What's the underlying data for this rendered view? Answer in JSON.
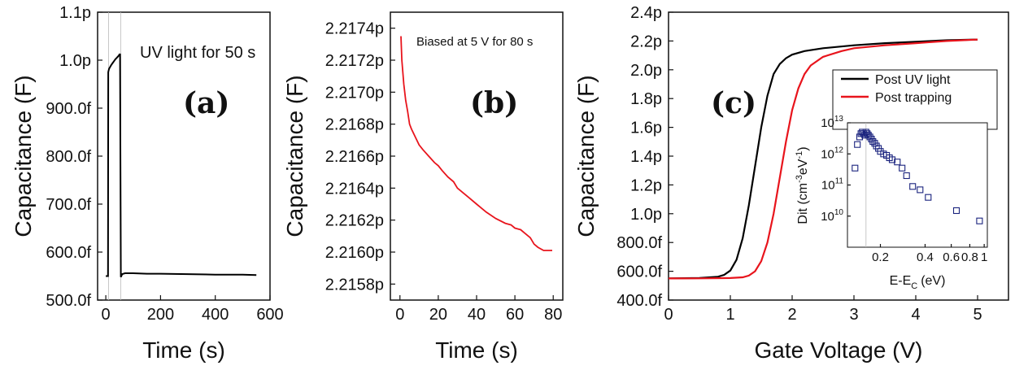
{
  "chart_data": [
    {
      "panel": "(a)",
      "type": "line",
      "title": "",
      "xlabel": "Time (s)",
      "ylabel": "Capacitance (F)",
      "xlim": [
        -30,
        600
      ],
      "ylim": [
        500,
        1100
      ],
      "xticks": [
        0,
        200,
        400,
        600
      ],
      "xtick_labels": [
        "0",
        "200",
        "400",
        "600"
      ],
      "yticks": [
        500,
        600,
        700,
        800,
        900,
        1000,
        1100
      ],
      "ytick_labels": [
        "500.0f",
        "600.0f",
        "700.0f",
        "800.0f",
        "900.0f",
        "1.0p",
        "1.1p"
      ],
      "annotation": "UV light for 50 s",
      "series": [
        {
          "name": "capacitance",
          "color": "#000000",
          "x": [
            0,
            8,
            9,
            10,
            12,
            15,
            20,
            25,
            30,
            35,
            40,
            45,
            48,
            50,
            52,
            55,
            60,
            70,
            80,
            100,
            150,
            200,
            300,
            400,
            500,
            550
          ],
          "y": [
            550,
            550,
            975,
            978,
            982,
            985,
            990,
            994,
            998,
            1002,
            1005,
            1008,
            1010,
            1012,
            1012,
            548,
            554,
            556,
            556,
            556,
            555,
            555,
            554,
            553,
            553,
            552
          ]
        }
      ],
      "guide_lines_x": [
        10,
        55
      ]
    },
    {
      "panel": "(b)",
      "type": "line",
      "title": "",
      "xlabel": "Time (s)",
      "ylabel": "Capacitance (F)",
      "xlim": [
        -5,
        85
      ],
      "ylim": [
        2.2157,
        2.2175
      ],
      "xticks": [
        0,
        20,
        40,
        60,
        80
      ],
      "xtick_labels": [
        "0",
        "20",
        "40",
        "60",
        "80"
      ],
      "yticks": [
        2.2158,
        2.216,
        2.2162,
        2.2164,
        2.2166,
        2.2168,
        2.217,
        2.2172,
        2.2174
      ],
      "ytick_labels": [
        "2.2158p",
        "2.2160p",
        "2.2162p",
        "2.2164p",
        "2.2166p",
        "2.2168p",
        "2.2170p",
        "2.2172p",
        "2.2174p"
      ],
      "annotation": "Biased at 5 V for 80 s",
      "series": [
        {
          "name": "capacitance",
          "color": "#e8141c",
          "x": [
            0.5,
            1,
            2,
            3,
            4,
            5,
            6,
            8,
            10,
            12,
            15,
            18,
            20,
            22,
            25,
            28,
            30,
            33,
            36,
            40,
            45,
            50,
            55,
            58,
            60,
            63,
            65,
            68,
            70,
            72,
            75,
            78,
            79.5
          ],
          "y": [
            2.21735,
            2.2172,
            2.21705,
            2.21695,
            2.21688,
            2.2168,
            2.21677,
            2.21672,
            2.21667,
            2.21664,
            2.2166,
            2.21656,
            2.21654,
            2.21651,
            2.21647,
            2.21644,
            2.2164,
            2.21637,
            2.21634,
            2.2163,
            2.21625,
            2.21621,
            2.21618,
            2.21617,
            2.21615,
            2.21614,
            2.21612,
            2.21609,
            2.21605,
            2.21603,
            2.21601,
            2.21601,
            2.21601
          ]
        }
      ]
    },
    {
      "panel": "(c)",
      "type": "line",
      "title": "",
      "xlabel": "Gate Voltage (V)",
      "ylabel": "Capacitance (F)",
      "xlim": [
        0,
        5.5
      ],
      "ylim": [
        400,
        2400
      ],
      "xticks": [
        0,
        1,
        2,
        3,
        4,
        5
      ],
      "xtick_labels": [
        "0",
        "1",
        "2",
        "3",
        "4",
        "5"
      ],
      "yticks": [
        400,
        600,
        800,
        1000,
        1200,
        1400,
        1600,
        1800,
        2000,
        2200,
        2400
      ],
      "ytick_labels": [
        "400.0f",
        "600.0f",
        "800.0f",
        "1.0p",
        "1.2p",
        "1.4p",
        "1.6p",
        "1.8p",
        "2.0p",
        "2.2p",
        "2.4p"
      ],
      "legend": [
        "Post UV light",
        "Post trapping"
      ],
      "legend_position": "top-right",
      "series": [
        {
          "name": "Post UV light",
          "color": "#000000",
          "x": [
            0,
            0.5,
            0.8,
            0.9,
            1.0,
            1.1,
            1.2,
            1.3,
            1.4,
            1.5,
            1.6,
            1.7,
            1.8,
            1.9,
            2.0,
            2.2,
            2.5,
            3.0,
            3.5,
            4.0,
            4.5,
            5.0
          ],
          "y": [
            550,
            553,
            562,
            575,
            605,
            680,
            830,
            1060,
            1330,
            1600,
            1820,
            1970,
            2040,
            2080,
            2105,
            2130,
            2150,
            2170,
            2185,
            2195,
            2205,
            2210
          ]
        },
        {
          "name": "Post trapping",
          "color": "#e8141c",
          "x": [
            0,
            0.5,
            1.0,
            1.2,
            1.3,
            1.4,
            1.5,
            1.6,
            1.7,
            1.8,
            1.9,
            2.0,
            2.1,
            2.2,
            2.3,
            2.5,
            2.8,
            3.0,
            3.5,
            4.0,
            4.5,
            5.0
          ],
          "y": [
            550,
            551,
            553,
            558,
            570,
            600,
            670,
            800,
            1000,
            1250,
            1500,
            1720,
            1870,
            1970,
            2030,
            2090,
            2130,
            2150,
            2170,
            2185,
            2200,
            2210
          ]
        }
      ]
    },
    {
      "panel": "(c) inset",
      "type": "scatter",
      "title": "",
      "xlabel": "E-E",
      "xlabel_sub": "C",
      "xlabel_unit": "(eV)",
      "ylabel": "Dit (cm",
      "ylabel_sup": "-3",
      "ylabel_mid": "eV",
      "ylabel_sup2": "-1",
      "ylabel_end": ")",
      "xscale": "log",
      "yscale": "log",
      "xlim": [
        0.12,
        1.05
      ],
      "ylim": [
        1000000000.0,
        10000000000000.0
      ],
      "xticks": [
        0.2,
        0.4,
        0.6,
        0.8,
        1
      ],
      "xtick_labels": [
        "0.2",
        "0.4",
        "0.6",
        "0.8",
        "1"
      ],
      "yticks": [
        10000000000.0,
        100000000000.0,
        1000000000000.0,
        10000000000000.0
      ],
      "ytick_labels": [
        {
          "base": "10",
          "exp": "10"
        },
        {
          "base": "10",
          "exp": "11"
        },
        {
          "base": "10",
          "exp": "12"
        },
        {
          "base": "10",
          "exp": "13"
        }
      ],
      "marker": "hollow-square",
      "color": "#1a237e",
      "guide_line_x": 0.16,
      "series": [
        {
          "name": "Dit",
          "x": [
            0.135,
            0.14,
            0.145,
            0.148,
            0.151,
            0.154,
            0.157,
            0.16,
            0.163,
            0.166,
            0.17,
            0.174,
            0.178,
            0.183,
            0.188,
            0.194,
            0.2,
            0.21,
            0.22,
            0.23,
            0.24,
            0.26,
            0.28,
            0.3,
            0.33,
            0.37,
            0.42,
            0.65,
            0.93
          ],
          "y": [
            350000000000.0,
            2000000000000.0,
            3500000000000.0,
            4500000000000.0,
            5000000000000.0,
            4500000000000.0,
            4000000000000.0,
            5000000000000.0,
            4500000000000.0,
            4000000000000.0,
            3500000000000.0,
            3000000000000.0,
            2500000000000.0,
            2200000000000.0,
            1800000000000.0,
            1500000000000.0,
            1200000000000.0,
            1000000000000.0,
            900000000000.0,
            750000000000.0,
            650000000000.0,
            550000000000.0,
            350000000000.0,
            200000000000.0,
            90000000000.0,
            70000000000.0,
            40000000000.0,
            15000000000.0,
            7000000000.0
          ]
        }
      ]
    }
  ]
}
